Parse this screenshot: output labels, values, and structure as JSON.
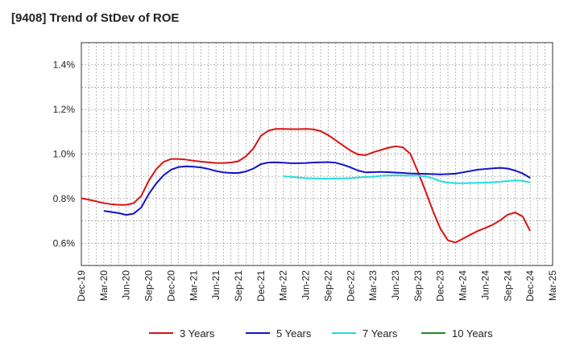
{
  "chart_data": {
    "type": "line",
    "title": "[9408]  Trend of StDev of ROE",
    "xlabel": "",
    "ylabel": "",
    "x_ticks": [
      "Dec-19",
      "Mar-20",
      "Jun-20",
      "Sep-20",
      "Dec-20",
      "Mar-21",
      "Jun-21",
      "Sep-21",
      "Dec-21",
      "Mar-22",
      "Jun-22",
      "Sep-22",
      "Dec-22",
      "Mar-23",
      "Jun-23",
      "Sep-23",
      "Dec-23",
      "Mar-24",
      "Jun-24",
      "Sep-24",
      "Dec-24",
      "Mar-25"
    ],
    "y_ticks": [
      "0.6%",
      "0.8%",
      "1.0%",
      "1.2%",
      "1.4%"
    ],
    "y_tick_values": [
      0.6,
      0.8,
      1.0,
      1.2,
      1.4
    ],
    "ylim": [
      0.5,
      1.5
    ],
    "x_unit": "month",
    "grid": true,
    "legend_position": "bottom",
    "series": [
      {
        "name": "3 Years",
        "color": "#dd1111",
        "points": [
          [
            "Dec-19",
            0.802
          ],
          [
            "Jan-20",
            0.795
          ],
          [
            "Feb-20",
            0.788
          ],
          [
            "Mar-20",
            0.78
          ],
          [
            "Apr-20",
            0.775
          ],
          [
            "May-20",
            0.772
          ],
          [
            "Jun-20",
            0.772
          ],
          [
            "Jul-20",
            0.78
          ],
          [
            "Aug-20",
            0.812
          ],
          [
            "Sep-20",
            0.88
          ],
          [
            "Oct-20",
            0.932
          ],
          [
            "Nov-20",
            0.965
          ],
          [
            "Dec-20",
            0.978
          ],
          [
            "Jan-21",
            0.978
          ],
          [
            "Feb-21",
            0.975
          ],
          [
            "Mar-21",
            0.97
          ],
          [
            "Apr-21",
            0.966
          ],
          [
            "May-21",
            0.963
          ],
          [
            "Jun-21",
            0.96
          ],
          [
            "Jul-21",
            0.96
          ],
          [
            "Aug-21",
            0.962
          ],
          [
            "Sep-21",
            0.968
          ],
          [
            "Oct-21",
            0.99
          ],
          [
            "Nov-21",
            1.025
          ],
          [
            "Dec-21",
            1.082
          ],
          [
            "Jan-22",
            1.105
          ],
          [
            "Feb-22",
            1.113
          ],
          [
            "Mar-22",
            1.113
          ],
          [
            "Apr-22",
            1.112
          ],
          [
            "May-22",
            1.112
          ],
          [
            "Jun-22",
            1.113
          ],
          [
            "Jul-22",
            1.111
          ],
          [
            "Aug-22",
            1.103
          ],
          [
            "Sep-22",
            1.085
          ],
          [
            "Oct-22",
            1.062
          ],
          [
            "Nov-22",
            1.038
          ],
          [
            "Dec-22",
            1.015
          ],
          [
            "Jan-23",
            0.998
          ],
          [
            "Feb-23",
            0.995
          ],
          [
            "Mar-23",
            1.008
          ],
          [
            "Apr-23",
            1.018
          ],
          [
            "May-23",
            1.028
          ],
          [
            "Jun-23",
            1.035
          ],
          [
            "Jul-23",
            1.03
          ],
          [
            "Aug-23",
            1.0
          ],
          [
            "Sep-23",
            0.92
          ],
          [
            "Oct-23",
            0.835
          ],
          [
            "Nov-23",
            0.745
          ],
          [
            "Dec-23",
            0.665
          ],
          [
            "Jan-24",
            0.613
          ],
          [
            "Feb-24",
            0.603
          ],
          [
            "Mar-24",
            0.62
          ],
          [
            "Apr-24",
            0.638
          ],
          [
            "May-24",
            0.655
          ],
          [
            "Jun-24",
            0.668
          ],
          [
            "Jul-24",
            0.683
          ],
          [
            "Aug-24",
            0.703
          ],
          [
            "Sep-24",
            0.728
          ],
          [
            "Oct-24",
            0.738
          ],
          [
            "Nov-24",
            0.72
          ],
          [
            "Dec-24",
            0.655
          ]
        ]
      },
      {
        "name": "5 Years",
        "color": "#1111cc",
        "points": [
          [
            "Mar-20",
            0.745
          ],
          [
            "Apr-20",
            0.74
          ],
          [
            "May-20",
            0.735
          ],
          [
            "Jun-20",
            0.727
          ],
          [
            "Jul-20",
            0.733
          ],
          [
            "Aug-20",
            0.76
          ],
          [
            "Sep-20",
            0.82
          ],
          [
            "Oct-20",
            0.868
          ],
          [
            "Nov-20",
            0.905
          ],
          [
            "Dec-20",
            0.93
          ],
          [
            "Jan-21",
            0.942
          ],
          [
            "Feb-21",
            0.945
          ],
          [
            "Mar-21",
            0.943
          ],
          [
            "Apr-21",
            0.94
          ],
          [
            "May-21",
            0.933
          ],
          [
            "Jun-21",
            0.924
          ],
          [
            "Jul-21",
            0.918
          ],
          [
            "Aug-21",
            0.915
          ],
          [
            "Sep-21",
            0.915
          ],
          [
            "Oct-21",
            0.922
          ],
          [
            "Nov-21",
            0.935
          ],
          [
            "Dec-21",
            0.955
          ],
          [
            "Jan-22",
            0.962
          ],
          [
            "Feb-22",
            0.963
          ],
          [
            "Mar-22",
            0.961
          ],
          [
            "Apr-22",
            0.959
          ],
          [
            "May-22",
            0.959
          ],
          [
            "Jun-22",
            0.96
          ],
          [
            "Jul-22",
            0.962
          ],
          [
            "Aug-22",
            0.963
          ],
          [
            "Sep-22",
            0.964
          ],
          [
            "Oct-22",
            0.961
          ],
          [
            "Nov-22",
            0.952
          ],
          [
            "Dec-22",
            0.94
          ],
          [
            "Jan-23",
            0.926
          ],
          [
            "Feb-23",
            0.918
          ],
          [
            "Mar-23",
            0.919
          ],
          [
            "Apr-23",
            0.92
          ],
          [
            "May-23",
            0.919
          ],
          [
            "Jun-23",
            0.917
          ],
          [
            "Jul-23",
            0.915
          ],
          [
            "Aug-23",
            0.913
          ],
          [
            "Sep-23",
            0.912
          ],
          [
            "Oct-23",
            0.911
          ],
          [
            "Nov-23",
            0.91
          ],
          [
            "Dec-23",
            0.909
          ],
          [
            "Jan-24",
            0.91
          ],
          [
            "Feb-24",
            0.912
          ],
          [
            "Mar-24",
            0.918
          ],
          [
            "Apr-24",
            0.924
          ],
          [
            "May-24",
            0.93
          ],
          [
            "Jun-24",
            0.933
          ],
          [
            "Jul-24",
            0.936
          ],
          [
            "Aug-24",
            0.938
          ],
          [
            "Sep-24",
            0.935
          ],
          [
            "Oct-24",
            0.926
          ],
          [
            "Nov-24",
            0.913
          ],
          [
            "Dec-24",
            0.893
          ]
        ]
      },
      {
        "name": "7 Years",
        "color": "#22dddd",
        "points": [
          [
            "Mar-22",
            0.9
          ],
          [
            "Apr-22",
            0.898
          ],
          [
            "May-22",
            0.895
          ],
          [
            "Jun-22",
            0.892
          ],
          [
            "Jul-22",
            0.891
          ],
          [
            "Aug-22",
            0.89
          ],
          [
            "Sep-22",
            0.89
          ],
          [
            "Oct-22",
            0.891
          ],
          [
            "Nov-22",
            0.891
          ],
          [
            "Dec-22",
            0.892
          ],
          [
            "Jan-23",
            0.895
          ],
          [
            "Feb-23",
            0.897
          ],
          [
            "Mar-23",
            0.898
          ],
          [
            "Apr-23",
            0.902
          ],
          [
            "May-23",
            0.904
          ],
          [
            "Jun-23",
            0.905
          ],
          [
            "Jul-23",
            0.904
          ],
          [
            "Aug-23",
            0.903
          ],
          [
            "Sep-23",
            0.903
          ],
          [
            "Oct-23",
            0.9
          ],
          [
            "Nov-23",
            0.891
          ],
          [
            "Dec-23",
            0.878
          ],
          [
            "Jan-24",
            0.872
          ],
          [
            "Feb-24",
            0.869
          ],
          [
            "Mar-24",
            0.869
          ],
          [
            "Apr-24",
            0.87
          ],
          [
            "May-24",
            0.871
          ],
          [
            "Jun-24",
            0.872
          ],
          [
            "Jul-24",
            0.873
          ],
          [
            "Aug-24",
            0.876
          ],
          [
            "Sep-24",
            0.879
          ],
          [
            "Oct-24",
            0.882
          ],
          [
            "Nov-24",
            0.88
          ],
          [
            "Dec-24",
            0.872
          ]
        ]
      },
      {
        "name": "10 Years",
        "color": "#228822",
        "points": []
      }
    ]
  }
}
